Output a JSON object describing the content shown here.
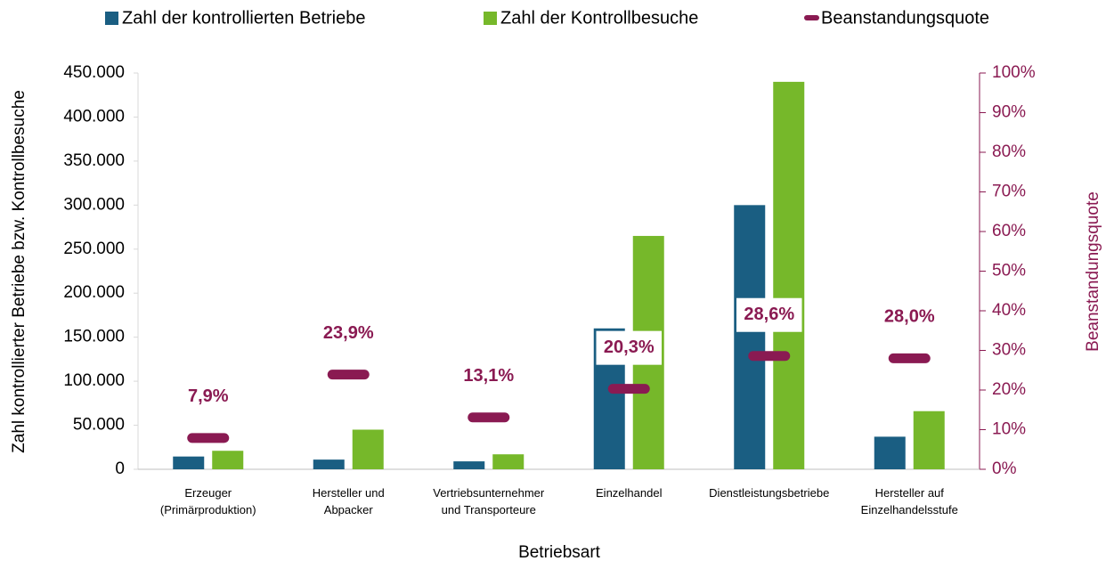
{
  "chart_data": {
    "type": "bar_line",
    "categories": [
      "Erzeuger\n(Primärproduktion)",
      "Hersteller und\nAbpacker",
      "Vertriebsunternehmer\nund Transporteure",
      "Einzelhandel",
      "Dienstleistungsbetriebe",
      "Hersteller auf\nEinzelhandelsstufe"
    ],
    "series": [
      {
        "name": "Zahl der kontrollierten Betriebe",
        "color": "#1a5e82",
        "values": [
          14500,
          11000,
          9000,
          160000,
          300000,
          37000
        ]
      },
      {
        "name": "Zahl der Kontrollbesuche",
        "color": "#76b82a",
        "values": [
          21000,
          45000,
          17000,
          265000,
          440000,
          66000
        ]
      },
      {
        "name": "Beanstandungsquote",
        "color": "#8a1a52",
        "axis": "y2",
        "values": [
          7.9,
          23.9,
          13.1,
          20.3,
          28.6,
          28.0
        ],
        "value_labels": [
          "7,9%",
          "23,9%",
          "13,1%",
          "20,3%",
          "28,6%",
          "28,0%"
        ]
      }
    ],
    "ylabel": "Zahl kontrollierter Betriebe bzw. Kontrollbesuche",
    "y2label": "Beanstandungsquote",
    "xlabel": "Betriebsart",
    "ylim": [
      0,
      450000
    ],
    "yticks": [
      0,
      {
        "value": 50000,
        "label": "50.000"
      },
      {
        "value": 100000,
        "label": "100.000"
      },
      {
        "value": 150000,
        "label": "150.000"
      },
      {
        "value": 200000,
        "label": "200.000"
      },
      {
        "value": 250000,
        "label": "250.000"
      },
      {
        "value": 300000,
        "label": "300.000"
      },
      {
        "value": 350000,
        "label": "350.000"
      },
      {
        "value": 400000,
        "label": "400.000"
      },
      {
        "value": 450000,
        "label": "450.000"
      }
    ],
    "y2lim": [
      0,
      100
    ],
    "y2ticks": [
      {
        "value": 0,
        "label": "0%"
      },
      {
        "value": 10,
        "label": "10%"
      },
      {
        "value": 20,
        "label": "20%"
      },
      {
        "value": 30,
        "label": "30%"
      },
      {
        "value": 40,
        "label": "40%"
      },
      {
        "value": 50,
        "label": "50%"
      },
      {
        "value": 60,
        "label": "60%"
      },
      {
        "value": 70,
        "label": "70%"
      },
      {
        "value": 80,
        "label": "80%"
      },
      {
        "value": 90,
        "label": "90%"
      },
      {
        "value": 100,
        "label": "100%"
      }
    ],
    "legend": "top"
  }
}
